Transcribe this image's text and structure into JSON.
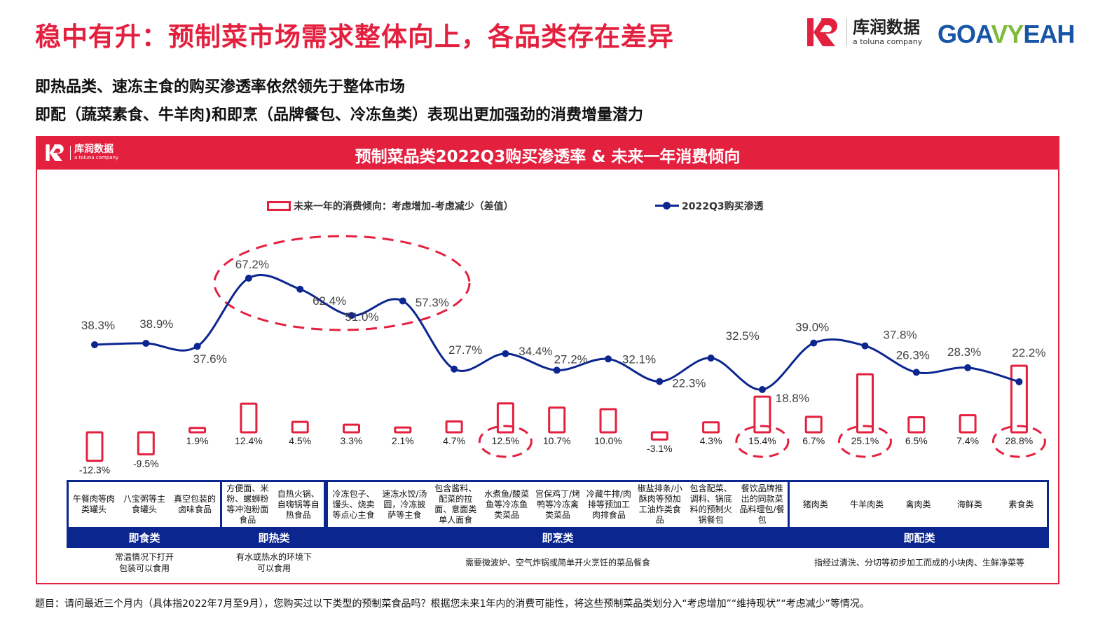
{
  "header": {
    "title": "稳中有升：预制菜市场需求整体向上，各品类存在差异",
    "subtitle_lines": [
      "即热品类、速冻主食的购买渗透率依然领先于整体市场",
      "即配（蔬菜素食、牛羊肉)和即烹（品牌餐包、冷冻鱼类）表现出更加强劲的消费增量潜力"
    ]
  },
  "logos": {
    "kr_main": "库润数据",
    "kr_sub": "a toluna company",
    "goa_part1": "GOA",
    "goa_part2": "VY",
    "goa_part3": "EAH"
  },
  "panel": {
    "title": "预制菜品类2022Q3购买渗透率 & 未来一年消费倾向",
    "mini_logo_main": "库润数据",
    "mini_logo_sub": "a toluna company"
  },
  "legend": {
    "bar_label": "未来一年的消费倾向：考虑增加-考虑减少（差值）",
    "line_label": "2022Q3购买渗透"
  },
  "colors": {
    "accent_red": "#e4203f",
    "navy": "#0c2690",
    "goa_blue": "#1755a6",
    "goa_green": "#7dbb3a"
  },
  "chart_data": {
    "type": "bar+line",
    "title": "预制菜品类2022Q3购买渗透率 & 未来一年消费倾向",
    "categories": [
      "午餐肉等肉类罐头",
      "八宝粥等主食罐头",
      "真空包装的卤味食品",
      "方便面、米粉、螺蛳粉等冲泡粉面食品",
      "自热火锅、自嗨锅等自热食品",
      "冷冻包子、馒头、烧卖等点心主食",
      "速冻水饺/汤圆，冷冻披萨等主食",
      "包含酱料、配菜的拉面、意面类单人面食",
      "水煮鱼/酸菜鱼等冷冻鱼类菜品",
      "宫保鸡丁/烤鸭等冷冻禽类菜品",
      "冷藏牛排/肉排等预加工肉排食品",
      "椒盐排条/小酥肉等预加工油炸类食品",
      "包含配菜、调料、锅底料的预制火锅餐包",
      "餐饮品牌推出的同款菜品料理包/餐包",
      "猪肉类",
      "牛羊肉类",
      "禽肉类",
      "海鲜类",
      "素食类"
    ],
    "series": [
      {
        "name": "2022Q3购买渗透",
        "type": "line",
        "values": [
          38.3,
          38.9,
          37.6,
          67.2,
          62.4,
          51.0,
          57.3,
          27.7,
          34.4,
          27.2,
          32.1,
          22.3,
          32.5,
          18.8,
          39.0,
          37.8,
          26.3,
          28.3,
          22.2
        ],
        "labels": [
          "38.3%",
          "38.9%",
          "37.6%",
          "67.2%",
          "62.4%",
          "51.0%",
          "57.3%",
          "27.7%",
          "34.4%",
          "27.2%",
          "32.1%",
          "22.3%",
          "32.5%",
          "18.8%",
          "39.0%",
          "37.8%",
          "26.3%",
          "28.3%",
          "22.2%"
        ]
      },
      {
        "name": "未来一年的消费倾向：考虑增加-考虑减少（差值）",
        "type": "bar",
        "values": [
          -12.3,
          -9.5,
          1.9,
          12.4,
          4.5,
          3.3,
          2.1,
          4.7,
          12.5,
          10.7,
          10.0,
          -3.1,
          4.3,
          15.4,
          6.7,
          25.1,
          6.5,
          7.4,
          28.8
        ],
        "labels": [
          "-12.3%",
          "-9.5%",
          "1.9%",
          "12.4%",
          "4.5%",
          "3.3%",
          "2.1%",
          "4.7%",
          "12.5%",
          "10.7%",
          "10.0%",
          "-3.1%",
          "4.3%",
          "15.4%",
          "6.7%",
          "25.1%",
          "6.5%",
          "7.4%",
          "28.8%"
        ]
      }
    ],
    "highlights": {
      "line_circled_indices": [
        3,
        4,
        5,
        6
      ],
      "bar_circled_indices": [
        8,
        13,
        15,
        18
      ]
    },
    "groups": [
      {
        "name": "即食类",
        "range": [
          0,
          2
        ],
        "desc": "常温情况下打开\n包装可以食用"
      },
      {
        "name": "即热类",
        "range": [
          3,
          4
        ],
        "desc": "有水或热水的环境下\n可以食用"
      },
      {
        "name": "即烹类",
        "range": [
          5,
          13
        ],
        "desc": "需要微波炉、空气炸锅或简单开火烹饪的菜品餐食"
      },
      {
        "name": "即配类",
        "range": [
          14,
          18
        ],
        "desc": "指经过清洗、分切等初步加工而成的小块肉、生鲜净菜等"
      }
    ],
    "legend_position": "top",
    "grid": false
  },
  "table": {
    "cells": [
      "午餐肉等肉类罐头",
      "八宝粥等主食罐头",
      "真空包装的卤味食品",
      "方便面、米粉、螺蛳粉等冲泡粉面食品",
      "自热火锅、自嗨锅等自热食品",
      "冷冻包子、馒头、烧卖等点心主食",
      "速冻水饺/汤圆，冷冻披萨等主食",
      "包含酱料、配菜的拉面、意面类单人面食",
      "水煮鱼/酸菜鱼等冷冻鱼类菜品",
      "宫保鸡丁/烤鸭等冷冻禽类菜品",
      "冷藏牛排/肉排等预加工肉排食品",
      "椒盐排条/小酥肉等预加工油炸类食品",
      "包含配菜、调料、锅底料的预制火锅餐包",
      "餐饮品牌推出的同款菜品料理包/餐包",
      "猪肉类",
      "牛羊肉类",
      "禽肉类",
      "海鲜类",
      "素食类"
    ],
    "groups": [
      {
        "name": "即食类",
        "desc_line1": "常温情况下打开",
        "desc_line2": "包装可以食用"
      },
      {
        "name": "即热类",
        "desc_line1": "有水或热水的环境下",
        "desc_line2": "可以食用"
      },
      {
        "name": "即烹类",
        "desc_line1": "需要微波炉、空气炸锅或简单开火烹饪的菜品餐食",
        "desc_line2": ""
      },
      {
        "name": "即配类",
        "desc_line1": "指经过清洗、分切等初步加工而成的小块肉、生鲜净菜等",
        "desc_line2": ""
      }
    ]
  },
  "footnote": "题目：请问最近三个月内（具体指2022年7月至9月），您购买过以下类型的预制菜食品吗？根据您未来1年内的消费可能性，将这些预制菜品类划分入“考虑增加”“维持现状”“考虑减少”等情况。"
}
